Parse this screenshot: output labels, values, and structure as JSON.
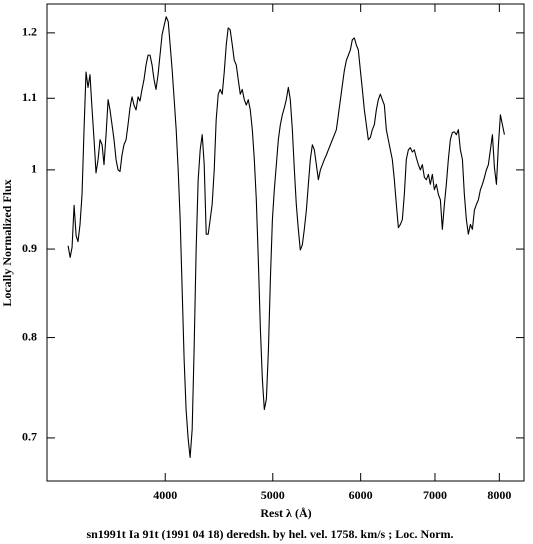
{
  "chart_data": {
    "type": "line",
    "title": "sn1991t Ia 91t (1991 04 18) deredsh. by hel. vel.  1758. km/s ;  Loc. Norm.",
    "xlabel": "Rest λ (Å)",
    "ylabel": "Locally Normalized Flux",
    "color": "#000000",
    "xscale": "log",
    "yscale": "log",
    "grid": false,
    "xlim": [
      3130,
      8420
    ],
    "ylim": [
      0.661,
      1.247
    ],
    "xticks": [
      4000,
      5000,
      6000,
      7000,
      8000
    ],
    "yticks": [
      0.7,
      0.8,
      0.9,
      1,
      1.1,
      1.2
    ],
    "x": [
      3270,
      3284,
      3297,
      3311,
      3325,
      3338,
      3352,
      3366,
      3380,
      3394,
      3408,
      3422,
      3437,
      3451,
      3465,
      3480,
      3494,
      3509,
      3523,
      3538,
      3553,
      3567,
      3582,
      3597,
      3612,
      3627,
      3642,
      3657,
      3672,
      3688,
      3703,
      3718,
      3734,
      3749,
      3765,
      3781,
      3796,
      3812,
      3828,
      3844,
      3860,
      3876,
      3892,
      3908,
      3924,
      3941,
      3957,
      3974,
      3990,
      4008,
      4025,
      4041,
      4058,
      4075,
      4092,
      4109,
      4126,
      4143,
      4160,
      4177,
      4195,
      4212,
      4230,
      4247,
      4265,
      4283,
      4301,
      4319,
      4337,
      4355,
      4373,
      4391,
      4409,
      4428,
      4446,
      4465,
      4483,
      4502,
      4521,
      4540,
      4558,
      4577,
      4597,
      4616,
      4635,
      4654,
      4674,
      4693,
      4713,
      4733,
      4752,
      4772,
      4792,
      4812,
      4832,
      4852,
      4873,
      4893,
      4913,
      4934,
      4955,
      4975,
      4996,
      5016,
      5037,
      5058,
      5079,
      5100,
      5121,
      5142,
      5164,
      5185,
      5207,
      5229,
      5250,
      5272,
      5294,
      5316,
      5338,
      5361,
      5383,
      5405,
      5428,
      5450,
      5473,
      5496,
      5519,
      5542,
      5565,
      5588,
      5611,
      5635,
      5658,
      5682,
      5705,
      5729,
      5753,
      5777,
      5801,
      5825,
      5849,
      5873,
      5897,
      5922,
      5946,
      5971,
      5996,
      6021,
      6046,
      6071,
      6096,
      6122,
      6147,
      6173,
      6198,
      6224,
      6250,
      6276,
      6302,
      6328,
      6354,
      6381,
      6407,
      6434,
      6461,
      6488,
      6515,
      6542,
      6569,
      6596,
      6624,
      6651,
      6679,
      6707,
      6735,
      6763,
      6791,
      6819,
      6848,
      6876,
      6905,
      6933,
      6962,
      6991,
      7020,
      7049,
      7079,
      7108,
      7138,
      7167,
      7197,
      7227,
      7257,
      7287,
      7318,
      7348,
      7379,
      7410,
      7440,
      7471,
      7502,
      7534,
      7565,
      7597,
      7628,
      7660,
      7692,
      7724,
      7756,
      7788,
      7820,
      7853,
      7886,
      7919,
      7952,
      7985,
      8018,
      8051,
      8085
    ],
    "values": [
      0.904,
      0.89,
      0.902,
      0.954,
      0.916,
      0.909,
      0.93,
      0.968,
      1.055,
      1.139,
      1.116,
      1.135,
      1.083,
      1.041,
      0.996,
      1.014,
      1.041,
      1.034,
      1.007,
      1.048,
      1.098,
      1.083,
      1.062,
      1.041,
      1.014,
      1.0,
      0.998,
      1.02,
      1.034,
      1.041,
      1.062,
      1.086,
      1.102,
      1.09,
      1.083,
      1.102,
      1.096,
      1.113,
      1.128,
      1.15,
      1.165,
      1.165,
      1.15,
      1.128,
      1.113,
      1.135,
      1.165,
      1.197,
      1.211,
      1.226,
      1.218,
      1.181,
      1.142,
      1.098,
      1.055,
      1.0,
      0.936,
      0.853,
      0.777,
      0.727,
      0.699,
      0.682,
      0.708,
      0.787,
      0.899,
      0.987,
      1.027,
      1.048,
      1.007,
      0.918,
      0.918,
      0.936,
      0.955,
      1.0,
      1.069,
      1.106,
      1.113,
      1.106,
      1.139,
      1.181,
      1.208,
      1.205,
      1.181,
      1.157,
      1.15,
      1.128,
      1.106,
      1.113,
      1.098,
      1.09,
      1.098,
      1.083,
      1.055,
      1.014,
      0.961,
      0.888,
      0.809,
      0.757,
      0.727,
      0.737,
      0.787,
      0.864,
      0.936,
      0.974,
      1.007,
      1.041,
      1.062,
      1.076,
      1.086,
      1.098,
      1.116,
      1.098,
      1.055,
      1.0,
      0.955,
      0.924,
      0.899,
      0.905,
      0.924,
      0.948,
      0.981,
      1.014,
      1.034,
      1.027,
      1.007,
      0.987,
      1.0,
      1.007,
      1.014,
      1.02,
      1.027,
      1.034,
      1.041,
      1.048,
      1.055,
      1.076,
      1.098,
      1.12,
      1.142,
      1.157,
      1.165,
      1.173,
      1.189,
      1.192,
      1.181,
      1.173,
      1.142,
      1.113,
      1.083,
      1.062,
      1.041,
      1.044,
      1.055,
      1.062,
      1.083,
      1.098,
      1.106,
      1.098,
      1.09,
      1.055,
      1.041,
      1.027,
      1.014,
      0.987,
      0.955,
      0.926,
      0.93,
      0.936,
      0.968,
      1.014,
      1.027,
      1.03,
      1.024,
      1.027,
      1.016,
      1.007,
      1.0,
      1.007,
      0.99,
      0.987,
      0.994,
      0.981,
      0.994,
      0.974,
      0.981,
      0.968,
      0.961,
      0.924,
      0.955,
      0.981,
      1.014,
      1.041,
      1.051,
      1.052,
      1.048,
      1.055,
      1.027,
      1.014,
      0.968,
      0.936,
      0.918,
      0.93,
      0.924,
      0.948,
      0.955,
      0.961,
      0.974,
      0.981,
      0.99,
      1.0,
      1.007,
      1.027,
      1.048,
      1.003,
      0.981,
      1.034,
      1.076,
      1.062,
      1.048
    ]
  }
}
